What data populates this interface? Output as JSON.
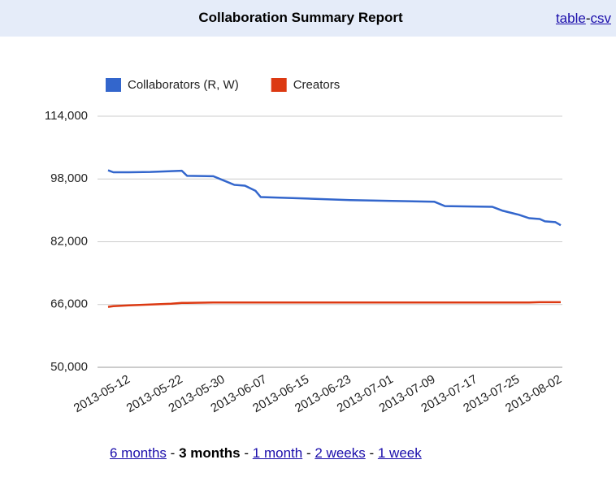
{
  "chart_data": {
    "type": "line",
    "title": "Collaboration Summary Report",
    "x": [
      "2013-05-08",
      "2013-05-09",
      "2013-05-12",
      "2013-05-16",
      "2013-05-20",
      "2013-05-22",
      "2013-05-23",
      "2013-05-28",
      "2013-05-30",
      "2013-06-01",
      "2013-06-03",
      "2013-06-05",
      "2013-06-06",
      "2013-06-15",
      "2013-06-23",
      "2013-07-01",
      "2013-07-09",
      "2013-07-11",
      "2013-07-20",
      "2013-07-22",
      "2013-07-25",
      "2013-07-27",
      "2013-07-29",
      "2013-07-30",
      "2013-08-01",
      "2013-08-02"
    ],
    "series": [
      {
        "name": "Collaborators (R, W)",
        "color": "#3366cc",
        "values": [
          100200,
          99700,
          99700,
          99800,
          100000,
          100100,
          98800,
          98700,
          97600,
          96500,
          96300,
          95000,
          93400,
          93000,
          92600,
          92400,
          92200,
          91100,
          90900,
          89900,
          88900,
          88000,
          87800,
          87200,
          87000,
          86200
        ]
      },
      {
        "name": "Creators",
        "color": "#dc3912",
        "values": [
          65400,
          65600,
          65800,
          66000,
          66200,
          66400,
          66400,
          66500,
          66500,
          66500,
          66500,
          66500,
          66500,
          66500,
          66500,
          66500,
          66500,
          66500,
          66500,
          66500,
          66500,
          66500,
          66600,
          66600,
          66600,
          66600
        ]
      }
    ],
    "xlim": [
      "2013-05-08",
      "2013-08-02"
    ],
    "xticks": [
      "2013-05-12",
      "2013-05-22",
      "2013-05-30",
      "2013-06-07",
      "2013-06-15",
      "2013-06-23",
      "2013-07-01",
      "2013-07-09",
      "2013-07-17",
      "2013-07-25",
      "2013-08-02"
    ],
    "ylim": [
      50000,
      114000
    ],
    "yticks": [
      {
        "value": 50000,
        "label": "50,000"
      },
      {
        "value": 66000,
        "label": "66,000"
      },
      {
        "value": 82000,
        "label": "82,000"
      },
      {
        "value": 98000,
        "label": "98,000"
      },
      {
        "value": 114000,
        "label": "114,000"
      }
    ],
    "grid": true,
    "legend": "top"
  },
  "export": [
    "table",
    "-",
    "csv"
  ],
  "ranges": [
    "6 months",
    "3 months",
    "1 month",
    "2 weeks",
    "1 week"
  ],
  "separator": "-"
}
